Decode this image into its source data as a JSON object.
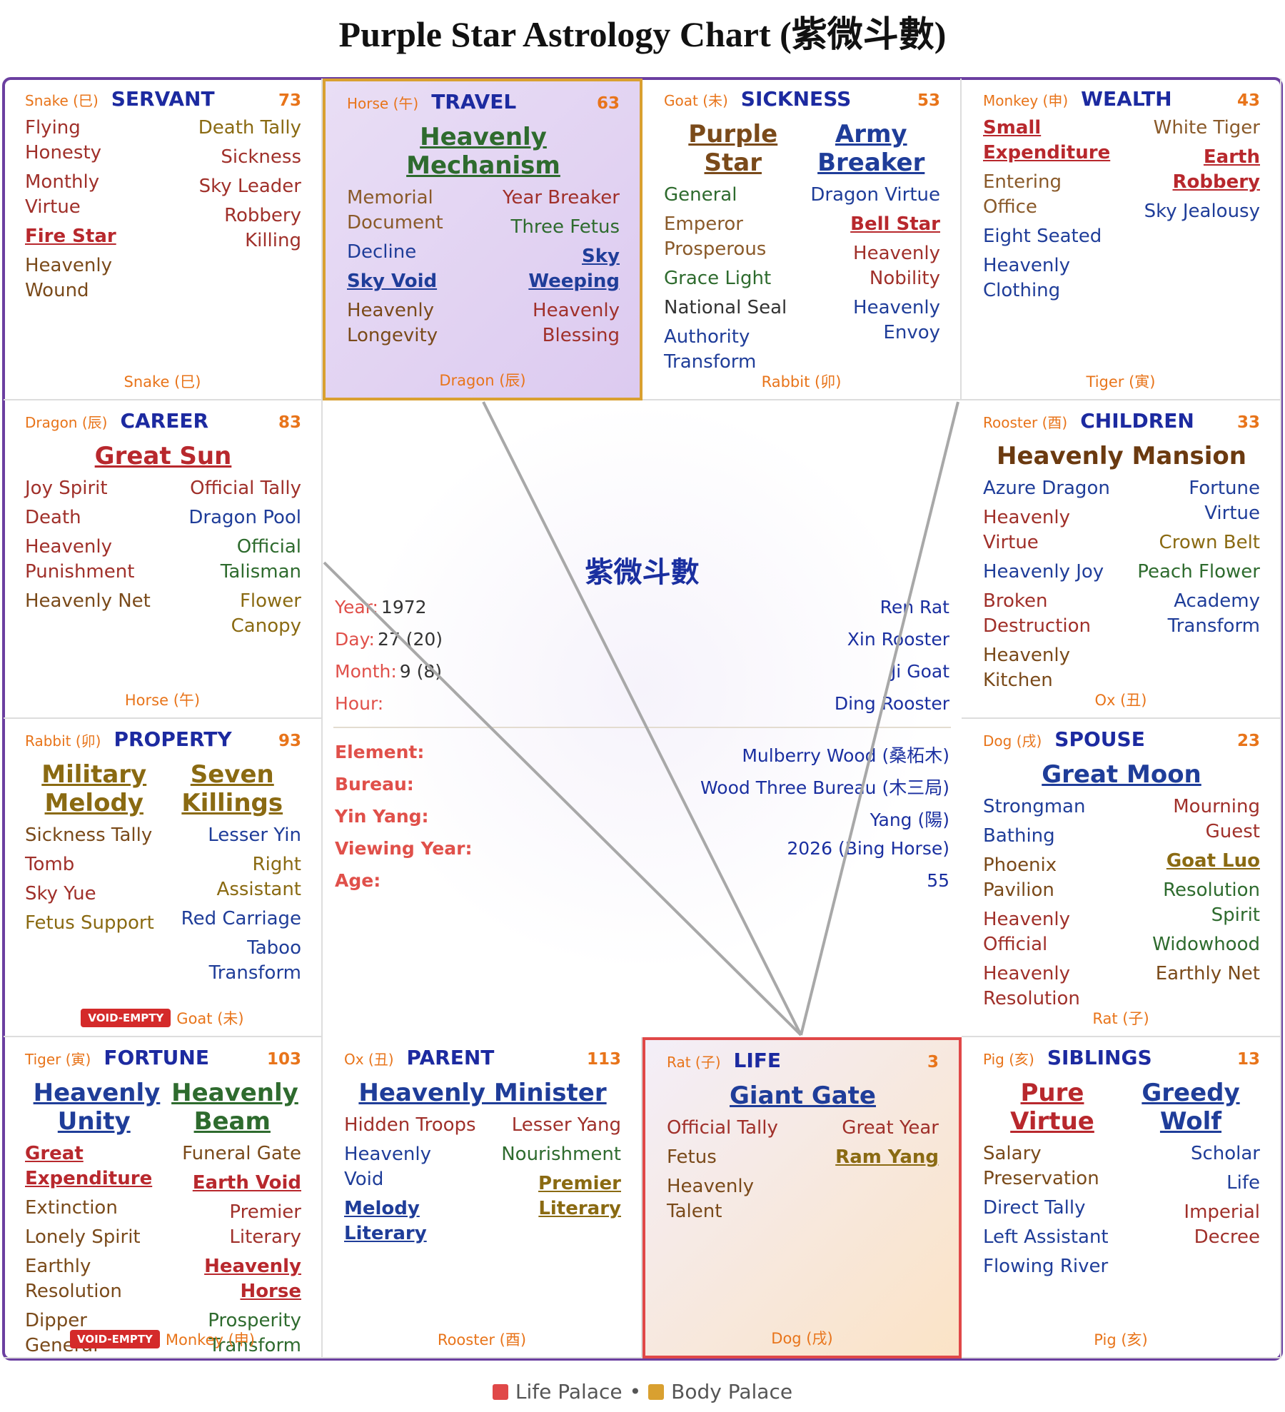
{
  "title": "Purple Star Astrology Chart (紫微斗數)",
  "legend": [
    {
      "label": "Life Palace",
      "color": "#e04848"
    },
    {
      "label": "Body Palace",
      "color": "#d9a030"
    }
  ],
  "palaces": [
    {
      "branch": "Snake (巳)",
      "name": "SERVANT",
      "number": 73,
      "main": [],
      "left": [
        {
          "name": "Flying Honesty",
          "color": "#a0302a"
        },
        {
          "name": "Monthly Virtue",
          "color": "#a0302a"
        },
        {
          "name": "Fire Star",
          "color": "#b8282d",
          "bold": true
        },
        {
          "name": "Heavenly Wound",
          "color": "#7a4a1a"
        }
      ],
      "right": [
        {
          "name": "Death Tally",
          "color": "#8a6a12"
        },
        {
          "name": "Sickness",
          "color": "#a0302a"
        },
        {
          "name": "Sky Leader",
          "color": "#a0302a"
        },
        {
          "name": "Robbery Killing",
          "color": "#a0302a"
        }
      ],
      "footer": "Snake (巳)"
    },
    {
      "branch": "Horse (午)",
      "name": "TRAVEL",
      "number": 63,
      "highlight": 1,
      "main": [
        {
          "name": "Heavenly Mechanism",
          "color": "#2e6b2e",
          "bold": true
        }
      ],
      "left": [
        {
          "name": "Memorial Document",
          "color": "#8a5a2a"
        },
        {
          "name": "Decline",
          "color": "#1f3d99"
        },
        {
          "name": "Sky Void",
          "color": "#1f3d99",
          "bold": true
        },
        {
          "name": "Heavenly Longevity",
          "color": "#7a4a1a"
        }
      ],
      "right": [
        {
          "name": "Year Breaker",
          "color": "#a0302a"
        },
        {
          "name": "Three Fetus",
          "color": "#2e6b2e"
        },
        {
          "name": "Sky Weeping",
          "color": "#1f3d99",
          "bold": true
        },
        {
          "name": "Heavenly Blessing",
          "color": "#a0302a"
        }
      ],
      "footer": "Dragon (辰)"
    },
    {
      "branch": "Goat (未)",
      "name": "SICKNESS",
      "number": 53,
      "main": [
        {
          "name": "Purple Star",
          "color": "#7a4a1a",
          "bold": true
        },
        {
          "name": "Army Breaker",
          "color": "#1f3d99",
          "bold": true
        }
      ],
      "left": [
        {
          "name": "General",
          "color": "#2e6b2e"
        },
        {
          "name": "Emperor Prosperous",
          "color": "#8a5a2a"
        },
        {
          "name": "Grace Light",
          "color": "#2e6b2e"
        },
        {
          "name": "National Seal",
          "color": "#333333"
        },
        {
          "name": "Authority Transform",
          "color": "#1f3d99"
        }
      ],
      "right": [
        {
          "name": "Dragon Virtue",
          "color": "#1f3d99"
        },
        {
          "name": "Bell Star",
          "color": "#b8282d",
          "bold": true
        },
        {
          "name": "Heavenly Nobility",
          "color": "#a0302a"
        },
        {
          "name": "Heavenly Envoy",
          "color": "#1f3d99"
        }
      ],
      "footer": "Rabbit (卯)"
    },
    {
      "branch": "Monkey (申)",
      "name": "WEALTH",
      "number": 43,
      "main": [],
      "left": [
        {
          "name": "Small Expenditure",
          "color": "#b8282d",
          "bold": true
        },
        {
          "name": "Entering Office",
          "color": "#8a5a2a"
        },
        {
          "name": "Eight Seated",
          "color": "#1f3d99"
        },
        {
          "name": "Heavenly Clothing",
          "color": "#1f3d99"
        }
      ],
      "right": [
        {
          "name": "White Tiger",
          "color": "#8a5a2a"
        },
        {
          "name": "Earth Robbery",
          "color": "#b8282d",
          "bold": true
        },
        {
          "name": "Sky Jealousy",
          "color": "#1f3d99"
        }
      ],
      "footer": "Tiger (寅)"
    },
    {
      "branch": "Dragon (辰)",
      "name": "CAREER",
      "number": 83,
      "main": [
        {
          "name": "Great Sun",
          "color": "#b8282d",
          "bold": true
        }
      ],
      "left": [
        {
          "name": "Joy Spirit",
          "color": "#a0302a"
        },
        {
          "name": "Death",
          "color": "#a0302a"
        },
        {
          "name": "Heavenly Punishment",
          "color": "#a0302a"
        },
        {
          "name": "Heavenly Net",
          "color": "#7a4a1a"
        }
      ],
      "right": [
        {
          "name": "Official Tally",
          "color": "#a0302a"
        },
        {
          "name": "Dragon Pool",
          "color": "#1f3d99"
        },
        {
          "name": "Official Talisman",
          "color": "#2e6b2e"
        },
        {
          "name": "Flower Canopy",
          "color": "#8a6a12"
        }
      ],
      "footer": "Horse (午)"
    },
    {
      "branch": "Rooster (酉)",
      "name": "CHILDREN",
      "number": 33,
      "main": [
        {
          "name": "Heavenly Mansion",
          "color": "#6b3a10"
        }
      ],
      "left": [
        {
          "name": "Azure Dragon",
          "color": "#1f3d99"
        },
        {
          "name": "Heavenly Virtue",
          "color": "#a0302a"
        },
        {
          "name": "Heavenly Joy",
          "color": "#1f3d99"
        },
        {
          "name": "Broken Destruction",
          "color": "#a0302a"
        },
        {
          "name": "Heavenly Kitchen",
          "color": "#7a4a1a"
        }
      ],
      "right": [
        {
          "name": "Fortune Virtue",
          "color": "#1f3d99"
        },
        {
          "name": "Crown Belt",
          "color": "#8a6a12"
        },
        {
          "name": "Peach Flower",
          "color": "#2e6b2e"
        },
        {
          "name": "Academy Transform",
          "color": "#1f3d99"
        }
      ],
      "footer": "Ox (丑)"
    },
    {
      "branch": "Rabbit (卯)",
      "name": "PROPERTY",
      "number": 93,
      "main": [
        {
          "name": "Military Melody",
          "color": "#8a6a12",
          "bold": true
        },
        {
          "name": "Seven Killings",
          "color": "#8a6a12",
          "bold": true
        }
      ],
      "left": [
        {
          "name": "Sickness Tally",
          "color": "#7a4a1a"
        },
        {
          "name": "Tomb",
          "color": "#a0302a"
        },
        {
          "name": "Sky Yue",
          "color": "#a0302a"
        },
        {
          "name": "Fetus Support",
          "color": "#8a6a12"
        }
      ],
      "right": [
        {
          "name": "Lesser Yin",
          "color": "#1f3d99"
        },
        {
          "name": "Right Assistant",
          "color": "#8a6a12"
        },
        {
          "name": "Red Carriage",
          "color": "#1f3d99"
        },
        {
          "name": "Taboo Transform",
          "color": "#1f3d99"
        }
      ],
      "badge": "VOID-EMPTY",
      "footer": "Goat (未)"
    },
    {
      "branch": "Dog (戌)",
      "name": "SPOUSE",
      "number": 23,
      "main": [
        {
          "name": "Great Moon",
          "color": "#1f3d99",
          "bold": true
        }
      ],
      "left": [
        {
          "name": "Strongman",
          "color": "#1f3d99"
        },
        {
          "name": "Bathing",
          "color": "#1f3d99"
        },
        {
          "name": "Phoenix Pavilion",
          "color": "#7a4a1a"
        },
        {
          "name": "Heavenly Official",
          "color": "#a0302a"
        },
        {
          "name": "Heavenly Resolution",
          "color": "#a0302a"
        }
      ],
      "right": [
        {
          "name": "Mourning Guest",
          "color": "#a0302a"
        },
        {
          "name": "Goat Luo",
          "color": "#8a6a12",
          "bold": true
        },
        {
          "name": "Resolution Spirit",
          "color": "#2e6b2e"
        },
        {
          "name": "Widowhood",
          "color": "#2e6b2e"
        },
        {
          "name": "Earthly Net",
          "color": "#7a4a1a"
        }
      ],
      "footer": "Rat (子)"
    },
    {
      "branch": "Tiger (寅)",
      "name": "FORTUNE",
      "number": 103,
      "main": [
        {
          "name": "Heavenly Unity",
          "color": "#1f3d99",
          "bold": true
        },
        {
          "name": "Heavenly Beam",
          "color": "#2e6b2e",
          "bold": true
        }
      ],
      "left": [
        {
          "name": "Great Expenditure",
          "color": "#b8282d",
          "bold": true
        },
        {
          "name": "Extinction",
          "color": "#7a4a1a"
        },
        {
          "name": "Lonely Spirit",
          "color": "#7a4a1a"
        },
        {
          "name": "Earthly Resolution",
          "color": "#7a4a1a"
        },
        {
          "name": "Dipper General",
          "color": "#7a4a1a"
        }
      ],
      "right": [
        {
          "name": "Funeral Gate",
          "color": "#7a4a1a"
        },
        {
          "name": "Earth Void",
          "color": "#b8282d",
          "bold": true
        },
        {
          "name": "Premier Literary",
          "color": "#a0302a"
        },
        {
          "name": "Heavenly Horse",
          "color": "#b8282d",
          "bold": true
        },
        {
          "name": "Prosperity Transform",
          "color": "#2e6b2e"
        }
      ],
      "badge": "VOID-EMPTY",
      "footer": "Monkey (申)"
    },
    {
      "branch": "Ox (丑)",
      "name": "PARENT",
      "number": 113,
      "main": [
        {
          "name": "Heavenly Minister",
          "color": "#1f3d99",
          "bold": true
        }
      ],
      "left": [
        {
          "name": "Hidden Troops",
          "color": "#a0302a"
        },
        {
          "name": "Heavenly Void",
          "color": "#1f3d99"
        },
        {
          "name": "Melody Literary",
          "color": "#1f3d99",
          "bold": true
        }
      ],
      "right": [
        {
          "name": "Lesser Yang",
          "color": "#a0302a"
        },
        {
          "name": "Nourishment",
          "color": "#2e6b2e"
        },
        {
          "name": "Premier Literary",
          "color": "#8a6a12",
          "bold": true
        }
      ],
      "footer": "Rooster (酉)"
    },
    {
      "branch": "Rat (子)",
      "name": "LIFE",
      "number": 3,
      "highlight": 0,
      "main": [
        {
          "name": "Giant Gate",
          "color": "#1f3d99",
          "bold": true
        }
      ],
      "left": [
        {
          "name": "Official Tally",
          "color": "#a0302a"
        },
        {
          "name": "Fetus",
          "color": "#7a4a1a"
        },
        {
          "name": "Heavenly Talent",
          "color": "#7a4a1a"
        }
      ],
      "right": [
        {
          "name": "Great Year",
          "color": "#a0302a"
        },
        {
          "name": "Ram Yang",
          "color": "#8a6a12",
          "bold": true
        }
      ],
      "footer": "Dog (戌)"
    },
    {
      "branch": "Pig (亥)",
      "name": "SIBLINGS",
      "number": 13,
      "main": [
        {
          "name": "Pure Virtue",
          "color": "#b8282d",
          "bold": true
        },
        {
          "name": "Greedy Wolf",
          "color": "#1f3d99",
          "bold": true
        }
      ],
      "left": [
        {
          "name": "Salary Preservation",
          "color": "#7a4a1a"
        },
        {
          "name": "Direct Tally",
          "color": "#1f3d99"
        },
        {
          "name": "Left Assistant",
          "color": "#1f3d99"
        },
        {
          "name": "Flowing River",
          "color": "#1f3d99"
        }
      ],
      "right": [
        {
          "name": "Scholar",
          "color": "#1f3d99"
        },
        {
          "name": "Life",
          "color": "#1f3d99"
        },
        {
          "name": "Imperial Decree",
          "color": "#a0302a"
        }
      ],
      "footer": "Pig (亥)"
    }
  ],
  "center": {
    "title": "紫微斗數",
    "birth": [
      {
        "label": "Year:",
        "value": "1972",
        "pillar": "Ren Rat"
      },
      {
        "label": "Day:",
        "value": "27 (20)",
        "pillar": "Xin Rooster"
      },
      {
        "label": "Month:",
        "value": "9 (8)",
        "pillar": "Ji Goat"
      },
      {
        "label": "Hour:",
        "pillar": "Ding Rooster"
      }
    ],
    "details": [
      {
        "label": "Element:",
        "value": "Mulberry Wood (桑柘木)"
      },
      {
        "label": "Bureau:",
        "value": "Wood Three Bureau (木三局)"
      },
      {
        "label": "Yin Yang:",
        "value": "Yang (陽)"
      },
      {
        "label": "Viewing Year:",
        "value": "2026 (Bing Horse)"
      },
      {
        "label": "Age:",
        "value": "55"
      }
    ]
  }
}
